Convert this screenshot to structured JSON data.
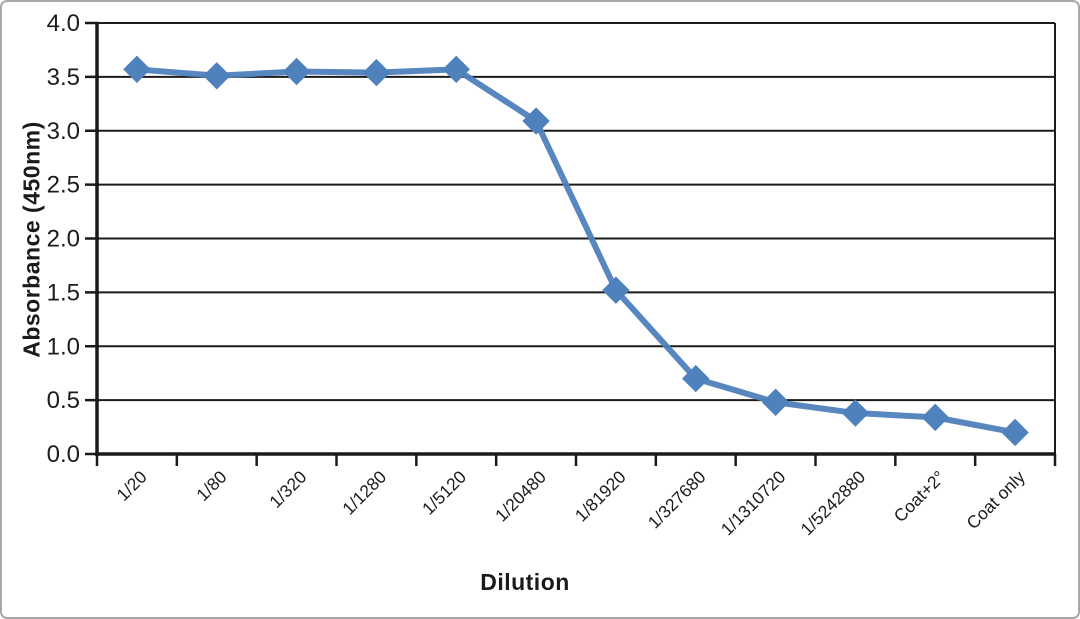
{
  "chart_data": {
    "type": "line",
    "title": "",
    "xlabel": "Dilution",
    "ylabel": "Absorbance (450nm)",
    "categories": [
      "1/20",
      "1/80",
      "1/320",
      "1/1280",
      "1/5120",
      "1/20480",
      "1/81920",
      "1/327680",
      "1/1310720",
      "1/5242880",
      "Coat+2°",
      "Coat only"
    ],
    "series": [
      {
        "name": "Absorbance (450nm)",
        "values": [
          3.57,
          3.51,
          3.55,
          3.54,
          3.57,
          3.09,
          1.52,
          0.7,
          0.48,
          0.38,
          0.34,
          0.2
        ]
      }
    ],
    "ylim": [
      0.0,
      4.0
    ],
    "y_tick_labels": [
      "0.0",
      "0.5",
      "1.0",
      "1.5",
      "2.0",
      "2.5",
      "3.0",
      "3.5",
      "4.0"
    ],
    "grid": true,
    "legend": false,
    "marker": "diamond",
    "line_color": "#4f81bd",
    "gridline_color": "#1c1c1c",
    "axis_color": "#1a1a1a",
    "frame_border_color": "#a8a8a8",
    "background_color": "#ffffff"
  }
}
